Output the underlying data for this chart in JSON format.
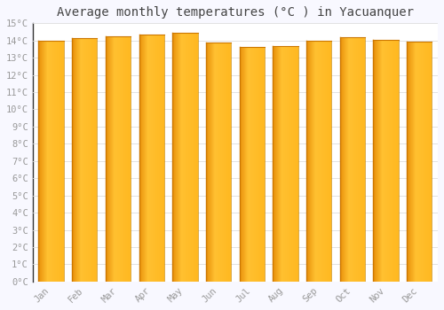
{
  "title": "Average monthly temperatures (°C ) in Yacuanquer",
  "months": [
    "Jan",
    "Feb",
    "Mar",
    "Apr",
    "May",
    "Jun",
    "Jul",
    "Aug",
    "Sep",
    "Oct",
    "Nov",
    "Dec"
  ],
  "values": [
    14.0,
    14.15,
    14.25,
    14.35,
    14.45,
    13.9,
    13.6,
    13.7,
    14.0,
    14.2,
    14.05,
    13.95
  ],
  "ylim": [
    0,
    15
  ],
  "yticks": [
    0,
    1,
    2,
    3,
    4,
    5,
    6,
    7,
    8,
    9,
    10,
    11,
    12,
    13,
    14,
    15
  ],
  "bar_color_left": "#E8900A",
  "bar_color_center": "#FFC84A",
  "background_color": "#F8F8FF",
  "plot_bg_color": "#FFFFFF",
  "grid_color": "#DDDDDD",
  "title_fontsize": 10,
  "tick_fontsize": 7.5,
  "title_color": "#444444",
  "tick_color": "#999999"
}
